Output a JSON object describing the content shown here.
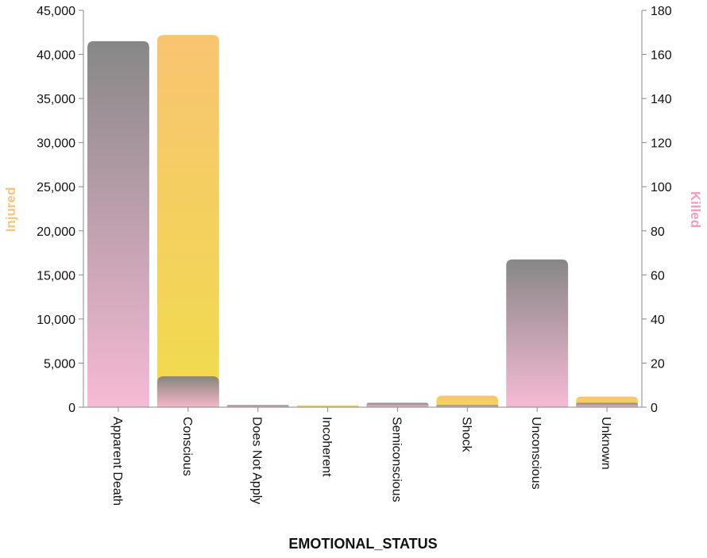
{
  "chart_data": {
    "type": "bar",
    "categories": [
      "Apparent Death",
      "Conscious",
      "Does Not Apply",
      "Incoherent",
      "Semiconscious",
      "Shock",
      "Unconscious",
      "Unknown"
    ],
    "xlabel": "EMOTIONAL_STATUS",
    "series": [
      {
        "name": "Injured",
        "axis": "left",
        "values": [
          0,
          42200,
          0,
          200,
          200,
          1300,
          200,
          1200
        ],
        "colors": {
          "top": "#f8c471",
          "bottom": "#f0dc4c"
        }
      },
      {
        "name": "Killed",
        "axis": "right",
        "values": [
          166,
          14,
          1,
          0,
          2,
          1,
          67,
          2
        ],
        "colors": {
          "top": "#7e7e7e",
          "bottom": "#f6b5d2"
        }
      }
    ],
    "y_left": {
      "label": "Injured",
      "ylim": [
        0,
        45000
      ],
      "ticks": [
        0,
        5000,
        10000,
        15000,
        20000,
        25000,
        30000,
        35000,
        40000,
        45000
      ],
      "tick_labels": [
        "0",
        "5,000",
        "10,000",
        "15,000",
        "20,000",
        "25,000",
        "30,000",
        "35,000",
        "40,000",
        "45,000"
      ],
      "color": "#f5c77e"
    },
    "y_right": {
      "label": "Killed",
      "ylim": [
        0,
        180
      ],
      "ticks": [
        0,
        20,
        40,
        60,
        80,
        100,
        120,
        140,
        160,
        180
      ],
      "tick_labels": [
        "0",
        "20",
        "40",
        "60",
        "80",
        "100",
        "120",
        "140",
        "160",
        "180"
      ],
      "color": "#f59ac0"
    },
    "grid": false,
    "legend": "none"
  }
}
